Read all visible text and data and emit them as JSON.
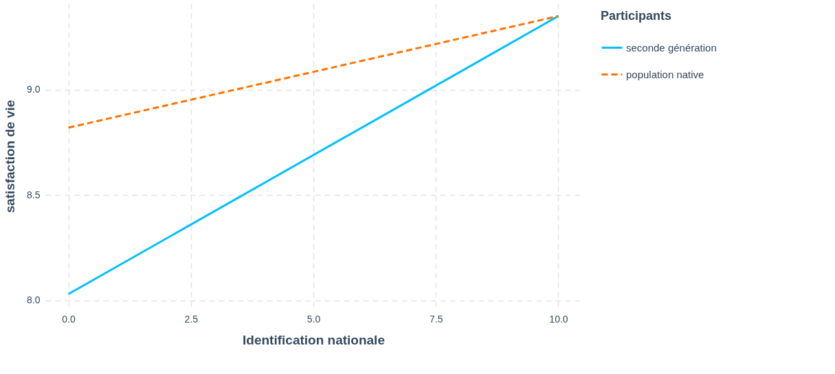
{
  "chart_data": {
    "type": "line",
    "xlabel": "Identification nationale",
    "ylabel": "satisfaction de vie",
    "legend_title": "Participants",
    "x": [
      0,
      10
    ],
    "series": [
      {
        "name": "seconde génération",
        "color": "#00bfff",
        "values": [
          8.03,
          9.35
        ],
        "line_style": "solid"
      },
      {
        "name": "population native",
        "color": "#ff7300",
        "values": [
          8.82,
          9.35
        ],
        "line_style": "dashed"
      }
    ],
    "xlim": [
      -0.47,
      10.47
    ],
    "ylim": [
      7.96,
      9.41
    ],
    "xticks": [
      {
        "value": 0,
        "label": "0.0"
      },
      {
        "value": 2.5,
        "label": "2.5"
      },
      {
        "value": 5,
        "label": "5.0"
      },
      {
        "value": 7.5,
        "label": "7.5"
      },
      {
        "value": 10,
        "label": "10.0"
      }
    ],
    "yticks": [
      {
        "value": 8,
        "label": "8.0"
      },
      {
        "value": 8.5,
        "label": "8.5"
      },
      {
        "value": 9,
        "label": "9.0"
      }
    ],
    "grid": true,
    "legend": "right",
    "marker": "none"
  }
}
